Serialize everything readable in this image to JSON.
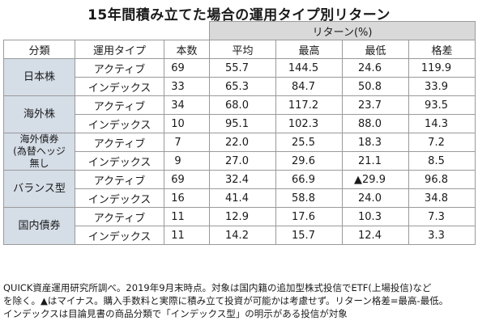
{
  "title": "15年間積み立てた場合の運用タイプ別リターン",
  "header": {
    "return_group": "リターン(%)",
    "columns": [
      "分類",
      "運用タイプ",
      "本数",
      "平均",
      "最高",
      "最低",
      "格差"
    ]
  },
  "groups": [
    {
      "category": "日本株",
      "rows": [
        {
          "type": "アクティブ",
          "count": "69",
          "avg": "55.7",
          "max": "144.5",
          "min": "24.6",
          "gap": "119.9"
        },
        {
          "type": "インデックス",
          "count": "33",
          "avg": "65.3",
          "max": "84.7",
          "min": "50.8",
          "gap": "33.9"
        }
      ]
    },
    {
      "category": "海外株",
      "rows": [
        {
          "type": "アクティブ",
          "count": "34",
          "avg": "68.0",
          "max": "117.2",
          "min": "23.7",
          "gap": "93.5"
        },
        {
          "type": "インデックス",
          "count": "10",
          "avg": "95.1",
          "max": "102.3",
          "min": "88.0",
          "gap": "14.3"
        }
      ]
    },
    {
      "category_lines": [
        "海外債券",
        "(為替ヘッジ",
        "無し"
      ],
      "rows": [
        {
          "type": "アクティブ",
          "count": "7",
          "avg": "22.0",
          "max": "25.5",
          "min": "18.3",
          "gap": "7.2"
        },
        {
          "type": "インデックス",
          "count": "9",
          "avg": "27.0",
          "max": "29.6",
          "min": "21.1",
          "gap": "8.5"
        }
      ]
    },
    {
      "category": "バランス型",
      "rows": [
        {
          "type": "アクティブ",
          "count": "69",
          "avg": "32.4",
          "max": "66.9",
          "min": "▲29.9",
          "gap": "96.8"
        },
        {
          "type": "インデックス",
          "count": "16",
          "avg": "41.4",
          "max": "58.8",
          "min": "24.0",
          "gap": "34.8"
        }
      ]
    },
    {
      "category": "国内債券",
      "rows": [
        {
          "type": "アクティブ",
          "count": "11",
          "avg": "12.9",
          "max": "17.6",
          "min": "10.3",
          "gap": "7.3"
        },
        {
          "type": "インデックス",
          "count": "11",
          "avg": "14.2",
          "max": "15.7",
          "min": "12.4",
          "gap": "3.3"
        }
      ]
    }
  ],
  "notes": [
    "QUICK資産運用研究所調べ。2019年9月末時点。対象は国内籍の追加型株式投信でETF(上場投信)など",
    "を除く。▲はマイナス。購入手数料と実際に積み立て投資が可能かは考慮せず。リターン格差=最高-最低。",
    "インデックスは目論見書の商品分類で「インデックス型」の明示がある投信が対象"
  ],
  "colors": {
    "category_bg": "#d5dde7",
    "return_header_bg": "#d9d9d9",
    "border": "#9a9a9a"
  }
}
